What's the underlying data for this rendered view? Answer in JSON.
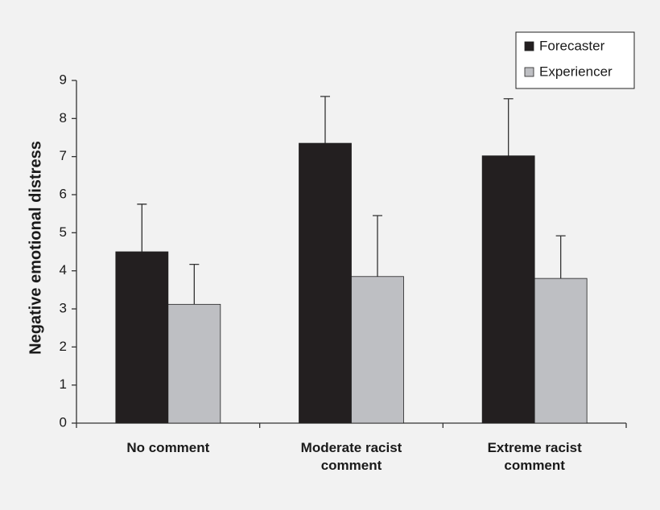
{
  "chart_data": {
    "type": "bar",
    "y_label": "Negative emotional distress",
    "categories": [
      "No comment",
      "Moderate racist comment",
      "Extreme racist comment"
    ],
    "series": [
      {
        "name": "Forecaster",
        "color": "#231f20",
        "values": [
          4.5,
          7.35,
          7.02
        ],
        "errors": [
          1.25,
          1.23,
          1.5
        ]
      },
      {
        "name": "Experiencer",
        "color": "#bebfc3",
        "values": [
          3.12,
          3.85,
          3.8
        ],
        "errors": [
          1.05,
          1.6,
          1.12
        ]
      }
    ],
    "ylim": [
      0,
      9
    ],
    "yticks": [
      0,
      1,
      2,
      3,
      4,
      5,
      6,
      7,
      8,
      9
    ],
    "legend": "upper right"
  }
}
